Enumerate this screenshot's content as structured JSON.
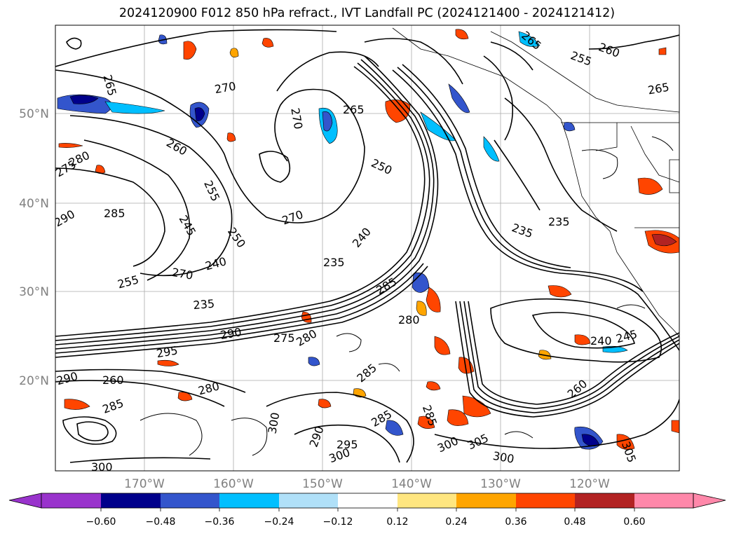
{
  "title": "2024120900 F012 850 hPa refract., IVT Landfall PC (2024121400 - 2024121412)",
  "map": {
    "lat_labels": [
      "50°N",
      "40°N",
      "30°N",
      "20°N"
    ],
    "lon_labels": [
      "170°W",
      "160°W",
      "150°W",
      "140°W",
      "130°W",
      "120°W"
    ],
    "contour_labels": [
      {
        "text": "265"
      },
      {
        "text": "270"
      },
      {
        "text": "265"
      },
      {
        "text": "270"
      },
      {
        "text": "265"
      },
      {
        "text": "260"
      },
      {
        "text": "255"
      },
      {
        "text": "260"
      },
      {
        "text": "265"
      },
      {
        "text": "275"
      },
      {
        "text": "280"
      },
      {
        "text": "250"
      },
      {
        "text": "255"
      },
      {
        "text": "270"
      },
      {
        "text": "285"
      },
      {
        "text": "245"
      },
      {
        "text": "250"
      },
      {
        "text": "240"
      },
      {
        "text": "270"
      },
      {
        "text": "255"
      },
      {
        "text": "235"
      },
      {
        "text": "235"
      },
      {
        "text": "240"
      },
      {
        "text": "235"
      },
      {
        "text": "235"
      },
      {
        "text": "285"
      },
      {
        "text": "280"
      },
      {
        "text": "290"
      },
      {
        "text": "275"
      },
      {
        "text": "280"
      },
      {
        "text": "295"
      },
      {
        "text": "240"
      },
      {
        "text": "245"
      },
      {
        "text": "285"
      },
      {
        "text": "260"
      },
      {
        "text": "285"
      },
      {
        "text": "285"
      },
      {
        "text": "300"
      },
      {
        "text": "305"
      },
      {
        "text": "300"
      },
      {
        "text": "295"
      },
      {
        "text": "300"
      },
      {
        "text": "305"
      },
      {
        "text": "300"
      },
      {
        "text": "290"
      },
      {
        "text": "290"
      },
      {
        "text": "260"
      },
      {
        "text": "280"
      },
      {
        "text": "285"
      },
      {
        "text": "290"
      },
      {
        "text": "300"
      }
    ]
  },
  "colorbar": {
    "colors": [
      "#9933cc",
      "#00008b",
      "#3355cc",
      "#00bfff",
      "#b0e0f8",
      "#ffffff",
      "#ffe680",
      "#ffa500",
      "#ff4500",
      "#b22222",
      "#ff88aa"
    ],
    "labels": [
      "−0.60",
      "−0.48",
      "−0.36",
      "−0.24",
      "−0.12",
      "0.12",
      "0.24",
      "0.36",
      "0.48",
      "0.60"
    ]
  }
}
